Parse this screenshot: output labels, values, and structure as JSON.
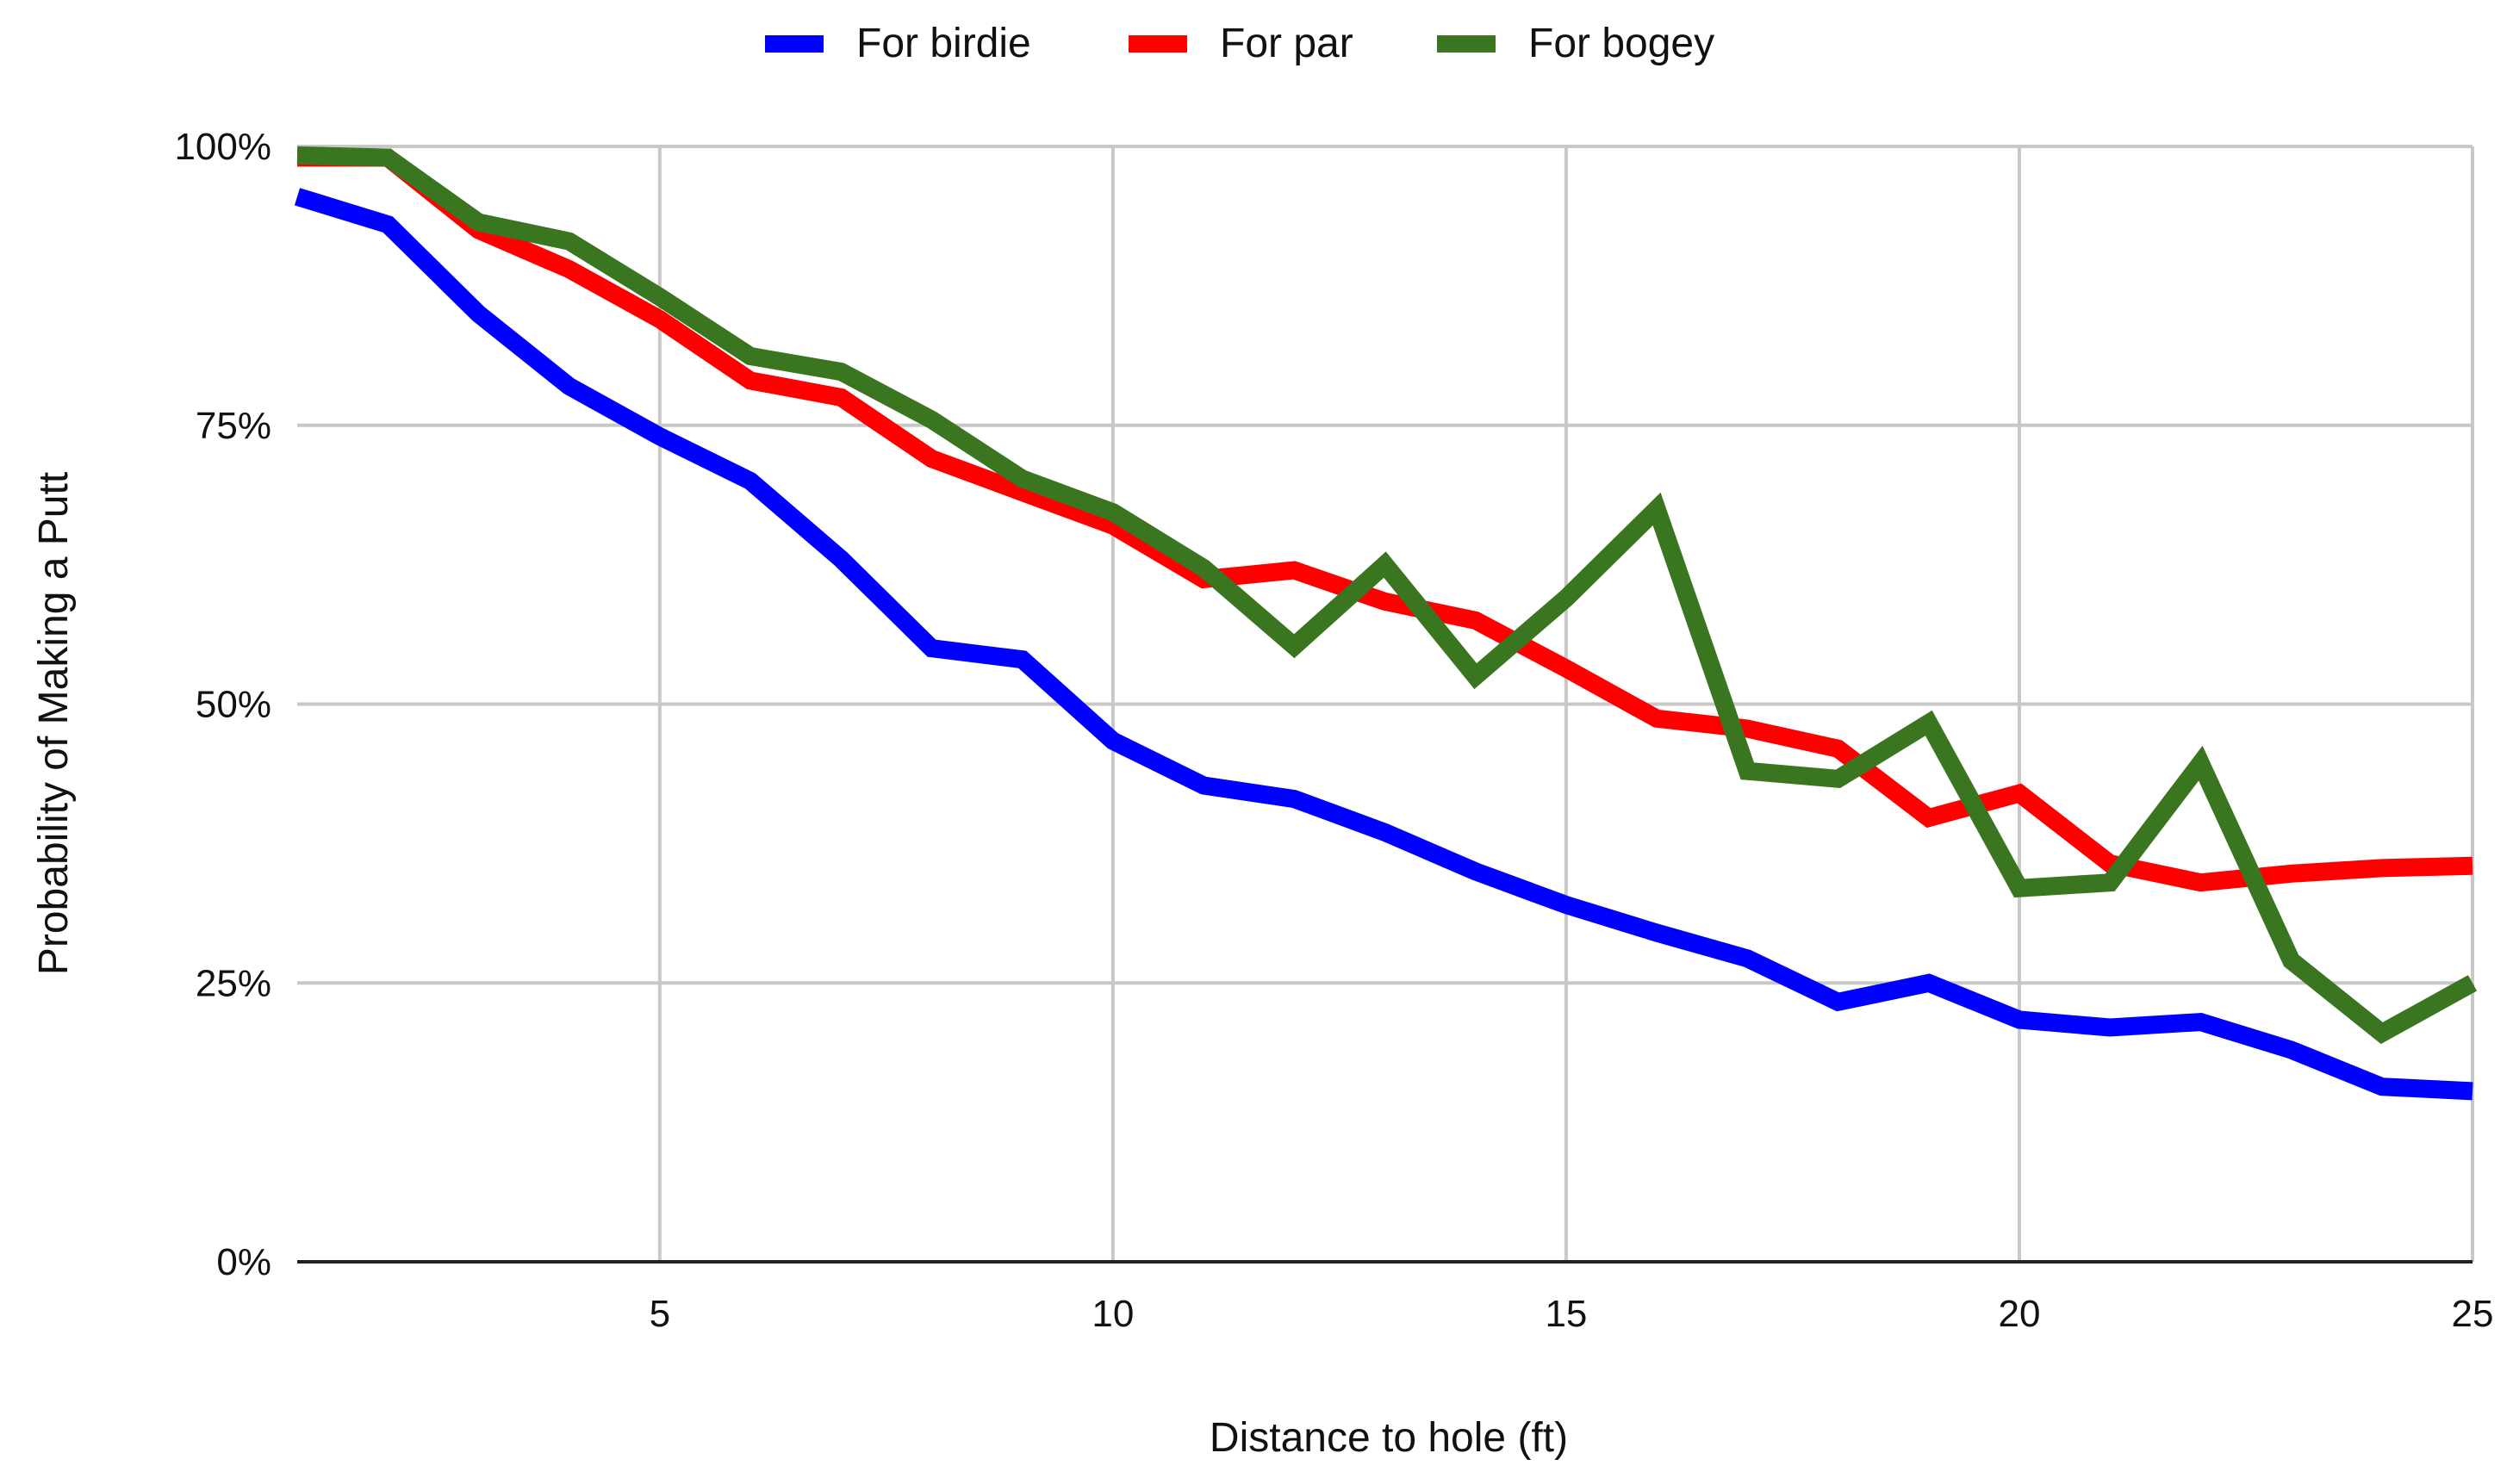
{
  "chart_data": {
    "type": "line",
    "title": "",
    "xlabel": "Distance to hole (ft)",
    "ylabel": "Probability of Making a Putt",
    "xlim": [
      1,
      25
    ],
    "ylim": [
      0,
      1
    ],
    "x_ticks": [
      5,
      10,
      15,
      20,
      25
    ],
    "x_tick_labels": [
      "5",
      "10",
      "15",
      "20",
      "25"
    ],
    "y_ticks": [
      0,
      0.25,
      0.5,
      0.75,
      1.0
    ],
    "y_tick_labels": [
      "0%",
      "25%",
      "50%",
      "75%",
      "100%"
    ],
    "grid": true,
    "legend_position": "top-center",
    "x": [
      1,
      2,
      3,
      4,
      5,
      6,
      7,
      8,
      9,
      10,
      11,
      12,
      13,
      14,
      15,
      16,
      17,
      18,
      19,
      20,
      21,
      22,
      23,
      24,
      25
    ],
    "series": [
      {
        "name": "For birdie",
        "color": "#0000ff",
        "values": [
          0.955,
          0.93,
          0.85,
          0.785,
          0.74,
          0.7,
          0.63,
          0.55,
          0.54,
          0.467,
          0.427,
          0.415,
          0.385,
          0.35,
          0.32,
          0.295,
          0.272,
          0.233,
          0.25,
          0.217,
          0.21,
          0.215,
          0.19,
          0.157,
          0.153
        ]
      },
      {
        "name": "For par",
        "color": "#ff0000",
        "values": [
          0.99,
          0.99,
          0.925,
          0.89,
          0.845,
          0.79,
          0.775,
          0.72,
          0.69,
          0.66,
          0.612,
          0.62,
          0.592,
          0.575,
          0.532,
          0.487,
          0.478,
          0.46,
          0.398,
          0.42,
          0.357,
          0.34,
          0.348,
          0.353,
          0.355
        ]
      },
      {
        "name": "For bogey",
        "color": "#3a7520",
        "values": [
          0.992,
          0.99,
          0.932,
          0.915,
          0.865,
          0.812,
          0.798,
          0.755,
          0.702,
          0.672,
          0.622,
          0.552,
          0.625,
          0.525,
          0.595,
          0.675,
          0.44,
          0.433,
          0.483,
          0.335,
          0.34,
          0.447,
          0.27,
          0.205,
          0.25
        ]
      }
    ]
  }
}
